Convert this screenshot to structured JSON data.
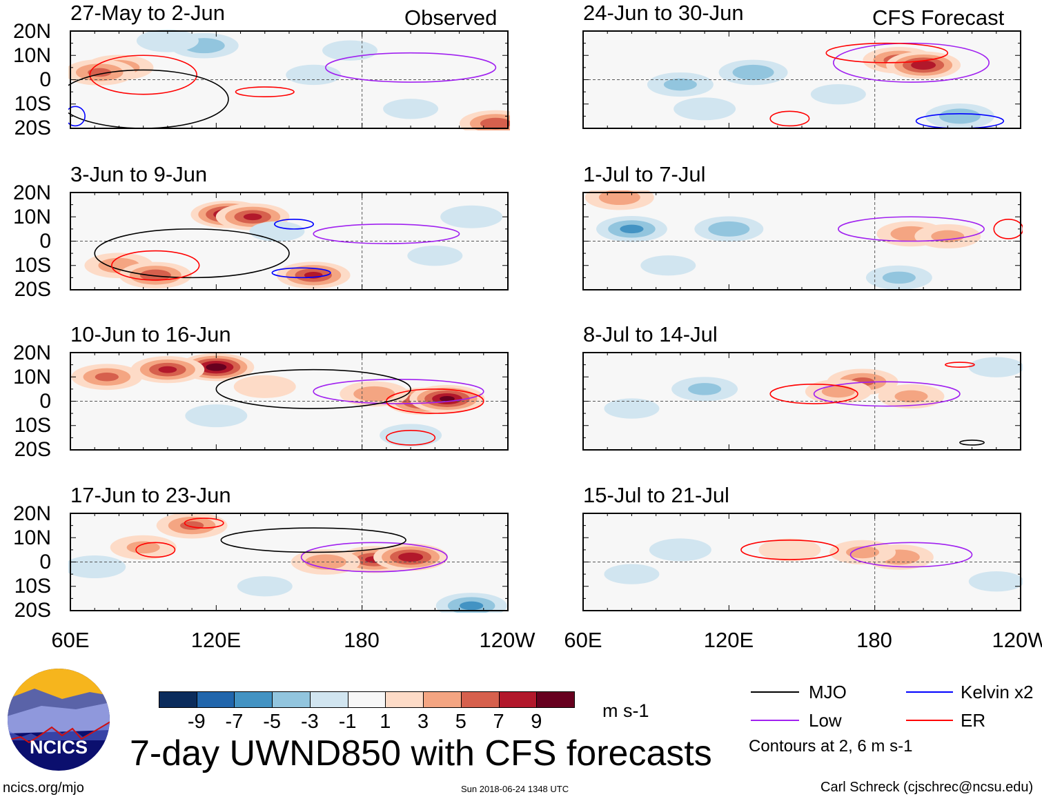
{
  "panels_left_header": "Observed",
  "panels_right_header": "CFS Forecast",
  "lat_labels": [
    "20N",
    "10N",
    "0",
    "10S",
    "20S"
  ],
  "lon_labels": [
    "60E",
    "120E",
    "180",
    "120W"
  ],
  "panels": [
    {
      "title": "27-May to 2-Jun",
      "anoms": [
        [
          80,
          5,
          5
        ],
        [
          72,
          3,
          6
        ],
        [
          115,
          14,
          -5
        ],
        [
          100,
          16,
          -3
        ],
        [
          160,
          2,
          -2
        ],
        [
          200,
          -12,
          -2
        ],
        [
          235,
          -18,
          7
        ],
        [
          175,
          12,
          -2
        ]
      ],
      "contours": [
        {
          "type": "Low",
          "lon": 200,
          "lat": 5,
          "rl": 35,
          "rt": 6
        },
        {
          "type": "ER",
          "lon": 90,
          "lat": 2,
          "rl": 22,
          "rt": 8
        },
        {
          "type": "ER",
          "lon": 140,
          "lat": -5,
          "rl": 12,
          "rt": 2
        },
        {
          "type": "MJO",
          "lon": 90,
          "lat": -8,
          "rl": 35,
          "rt": 12
        },
        {
          "type": "Kelvin",
          "lon": 62,
          "lat": -15,
          "rl": 4,
          "rt": 4
        }
      ]
    },
    {
      "title": "24-Jun to 30-Jun",
      "anoms": [
        [
          190,
          8,
          7
        ],
        [
          200,
          6,
          9
        ],
        [
          100,
          -2,
          -4
        ],
        [
          130,
          3,
          -5
        ],
        [
          110,
          -12,
          -3
        ],
        [
          215,
          -15,
          -5
        ],
        [
          165,
          -6,
          -2
        ]
      ],
      "contours": [
        {
          "type": "Low",
          "lon": 195,
          "lat": 7,
          "rl": 32,
          "rt": 8
        },
        {
          "type": "ER",
          "lon": 185,
          "lat": 11,
          "rl": 25,
          "rt": 4
        },
        {
          "type": "Kelvin",
          "lon": 215,
          "lat": -17,
          "rl": 18,
          "rt": 3
        },
        {
          "type": "ER",
          "lon": 145,
          "lat": -16,
          "rl": 8,
          "rt": 3
        }
      ]
    },
    {
      "title": "3-Jun to 9-Jun",
      "anoms": [
        [
          125,
          11,
          10
        ],
        [
          135,
          10,
          8
        ],
        [
          80,
          -10,
          5
        ],
        [
          95,
          -14,
          7
        ],
        [
          160,
          -14,
          8
        ],
        [
          145,
          4,
          -2
        ],
        [
          225,
          10,
          -3
        ],
        [
          210,
          -6,
          -2
        ]
      ],
      "contours": [
        {
          "type": "Low",
          "lon": 190,
          "lat": 3,
          "rl": 30,
          "rt": 4
        },
        {
          "type": "Kelvin",
          "lon": 152,
          "lat": 7,
          "rl": 8,
          "rt": 2
        },
        {
          "type": "Kelvin",
          "lon": 155,
          "lat": -13,
          "rl": 12,
          "rt": 2
        },
        {
          "type": "MJO",
          "lon": 110,
          "lat": -5,
          "rl": 40,
          "rt": 10
        },
        {
          "type": "ER",
          "lon": 95,
          "lat": -10,
          "rl": 18,
          "rt": 6
        }
      ]
    },
    {
      "title": "1-Jul to 7-Jul",
      "anoms": [
        [
          80,
          5,
          -6
        ],
        [
          120,
          5,
          -5
        ],
        [
          195,
          3,
          5
        ],
        [
          210,
          2,
          4
        ],
        [
          190,
          -15,
          -4
        ],
        [
          95,
          -10,
          -2
        ],
        [
          75,
          18,
          5
        ]
      ],
      "contours": [
        {
          "type": "Low",
          "lon": 195,
          "lat": 5,
          "rl": 30,
          "rt": 5
        },
        {
          "type": "ER",
          "lon": 235,
          "lat": 5,
          "rl": 6,
          "rt": 4
        }
      ]
    },
    {
      "title": "10-Jun to 16-Jun",
      "anoms": [
        [
          120,
          14,
          11
        ],
        [
          100,
          13,
          8
        ],
        [
          75,
          10,
          6
        ],
        [
          205,
          0,
          9
        ],
        [
          215,
          1,
          10
        ],
        [
          185,
          3,
          5
        ],
        [
          140,
          6,
          3
        ],
        [
          120,
          -6,
          -3
        ],
        [
          200,
          -14,
          -3
        ]
      ],
      "contours": [
        {
          "type": "Low",
          "lon": 195,
          "lat": 4,
          "rl": 35,
          "rt": 5
        },
        {
          "type": "ER",
          "lon": 210,
          "lat": 0,
          "rl": 20,
          "rt": 5
        },
        {
          "type": "MJO",
          "lon": 160,
          "lat": 5,
          "rl": 40,
          "rt": 8
        },
        {
          "type": "ER",
          "lon": 200,
          "lat": -15,
          "rl": 10,
          "rt": 3
        }
      ]
    },
    {
      "title": "8-Jul to 14-Jul",
      "anoms": [
        [
          175,
          8,
          6
        ],
        [
          165,
          4,
          4
        ],
        [
          195,
          2,
          4
        ],
        [
          110,
          5,
          -4
        ],
        [
          80,
          -3,
          -2
        ],
        [
          230,
          14,
          -2
        ]
      ],
      "contours": [
        {
          "type": "Low",
          "lon": 185,
          "lat": 3,
          "rl": 30,
          "rt": 5
        },
        {
          "type": "ER",
          "lon": 155,
          "lat": 3,
          "rl": 18,
          "rt": 4
        },
        {
          "type": "ER",
          "lon": 215,
          "lat": 15,
          "rl": 6,
          "rt": 1
        },
        {
          "type": "MJO",
          "lon": 220,
          "lat": -17,
          "rl": 5,
          "rt": 1
        }
      ]
    },
    {
      "title": "17-Jun to 23-Jun",
      "anoms": [
        [
          185,
          1,
          8
        ],
        [
          200,
          2,
          9
        ],
        [
          165,
          0,
          5
        ],
        [
          110,
          15,
          6
        ],
        [
          90,
          6,
          4
        ],
        [
          70,
          -2,
          -3
        ],
        [
          225,
          -18,
          -6
        ],
        [
          140,
          -10,
          -2
        ]
      ],
      "contours": [
        {
          "type": "Low",
          "lon": 185,
          "lat": 2,
          "rl": 30,
          "rt": 6
        },
        {
          "type": "ER",
          "lon": 95,
          "lat": 5,
          "rl": 8,
          "rt": 3
        },
        {
          "type": "MJO",
          "lon": 160,
          "lat": 9,
          "rl": 38,
          "rt": 5
        },
        {
          "type": "ER",
          "lon": 115,
          "lat": 16,
          "rl": 8,
          "rt": 2
        }
      ]
    },
    {
      "title": "15-Jul to 21-Jul",
      "anoms": [
        [
          190,
          2,
          5
        ],
        [
          175,
          4,
          4
        ],
        [
          145,
          5,
          3
        ],
        [
          100,
          5,
          -3
        ],
        [
          80,
          -5,
          -2
        ],
        [
          230,
          -8,
          -2
        ]
      ],
      "contours": [
        {
          "type": "Low",
          "lon": 195,
          "lat": 3,
          "rl": 25,
          "rt": 5
        },
        {
          "type": "ER",
          "lon": 145,
          "lat": 5,
          "rl": 20,
          "rt": 4
        }
      ]
    }
  ],
  "colorbar": {
    "colors": [
      "#0b2c5c",
      "#2166ac",
      "#4393c3",
      "#92c5de",
      "#d1e5f0",
      "#f7f7f7",
      "#fddbc7",
      "#f4a582",
      "#d6604d",
      "#b2182b",
      "#67001f"
    ],
    "labels": [
      "-9",
      "-7",
      "-5",
      "-3",
      "-1",
      "1",
      "3",
      "5",
      "7",
      "9"
    ],
    "units": "m s-1"
  },
  "legend": {
    "items": [
      {
        "label": "MJO",
        "color": "#000000"
      },
      {
        "label": "Kelvin x2",
        "color": "#0000ff"
      },
      {
        "label": "Low",
        "color": "#a020f0"
      },
      {
        "label": "ER",
        "color": "#ff0000"
      }
    ],
    "note": "Contours at 2, 6 m s-1"
  },
  "title": "7-day UWND850 with CFS forecasts",
  "logo_text": "NCICS",
  "url": "ncics.org/mjo",
  "timestamp": "Sun 2018-06-24 1348 UTC",
  "credit": "Carl Schreck (cjschrec@ncsu.edu)"
}
